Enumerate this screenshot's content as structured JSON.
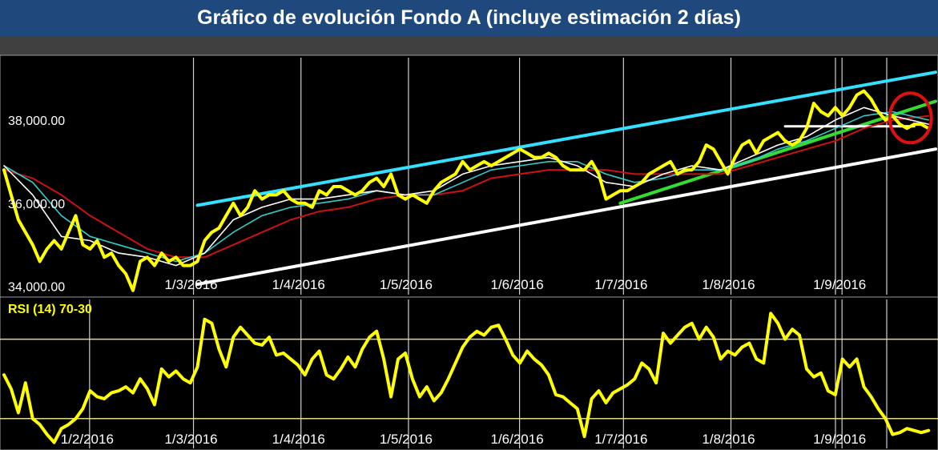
{
  "title": "Gráfico de evolución Fondo A (incluye estimación 2 días)",
  "colors": {
    "price": "#ffff00",
    "ma_short": "#ffffff",
    "ma_mid": "#33cccc",
    "ma_long": "#cc1111",
    "channel_top": "#33e0ff",
    "channel_bottom": "#ffffff",
    "support_green": "#33dd33",
    "highlight_circle": "#e01010",
    "grid": "#d0d0d0",
    "rsi_bands": "#e0d890"
  },
  "chart_data": [
    {
      "type": "line",
      "name": "price-panel",
      "yticks": [
        "38,000.00",
        "36,000.00",
        "34,000.00"
      ],
      "ytick_values": [
        38000,
        36000,
        34000
      ],
      "ylim": [
        33800,
        39500
      ],
      "xlim": [
        0,
        130
      ],
      "xticks": [
        "1/3/2016",
        "1/4/2016",
        "1/5/2016",
        "1/6/2016",
        "1/7/2016",
        "1/8/2016",
        "1/9/2016"
      ],
      "xtick_positions": [
        27,
        42,
        57,
        72.5,
        87,
        102,
        117.5
      ],
      "series": [
        {
          "key": "price",
          "x": [
            0,
            1,
            2,
            3,
            4,
            5,
            6,
            7,
            8,
            9,
            10,
            11,
            12,
            13,
            14,
            15,
            16,
            17,
            18,
            19,
            20,
            21,
            22,
            23,
            24,
            25,
            26,
            27,
            28,
            29,
            30,
            31,
            32,
            33,
            34,
            35,
            36,
            37,
            38,
            39,
            40,
            41,
            42,
            43,
            44,
            45,
            46,
            47,
            48,
            49,
            50,
            51,
            52,
            53,
            54,
            55,
            56,
            57,
            58,
            59,
            60,
            61,
            62,
            63,
            64,
            65,
            66,
            67,
            68,
            69,
            70,
            71,
            72,
            73,
            74,
            75,
            76,
            77,
            78,
            79,
            80,
            81,
            82,
            83,
            84,
            85,
            86,
            87,
            88,
            89,
            90,
            91,
            92,
            93,
            94,
            95,
            96,
            97,
            98,
            99,
            100,
            101,
            102,
            103,
            104,
            105,
            106,
            107,
            108,
            109,
            110,
            111,
            112,
            113,
            114,
            115,
            116,
            117,
            118,
            119,
            120,
            121,
            122,
            123,
            124,
            125,
            126,
            127,
            128,
            129
          ],
          "values": [
            36800,
            36200,
            35600,
            35300,
            35000,
            34600,
            34900,
            35100,
            34900,
            35300,
            35700,
            35000,
            34900,
            35100,
            34700,
            34800,
            34500,
            34300,
            33900,
            34600,
            34700,
            34500,
            34800,
            34600,
            34700,
            34500,
            34500,
            34600,
            35100,
            35300,
            35400,
            35700,
            36000,
            35700,
            35900,
            36300,
            36100,
            36200,
            36200,
            36300,
            36100,
            36000,
            36000,
            35900,
            36300,
            36200,
            36400,
            36400,
            36300,
            36200,
            36300,
            36500,
            36600,
            36400,
            36700,
            36200,
            36100,
            36200,
            36100,
            36000,
            36300,
            36500,
            36600,
            36700,
            37000,
            36800,
            36900,
            37000,
            36900,
            37000,
            37100,
            37200,
            37300,
            37200,
            37100,
            37100,
            37200,
            37100,
            36900,
            36800,
            36800,
            36800,
            37000,
            36700,
            36100,
            36200,
            36300,
            36300,
            36400,
            36500,
            36700,
            36800,
            36900,
            37000,
            36700,
            36800,
            36800,
            37000,
            37400,
            37300,
            37000,
            36700,
            37100,
            37400,
            37500,
            37200,
            37500,
            37600,
            37700,
            37500,
            37400,
            37500,
            37800,
            38400,
            38200,
            38100,
            38300,
            38100,
            38300,
            38600,
            38700,
            38500,
            38200,
            38000,
            38100,
            37900,
            37800,
            37900,
            37900,
            37800
          ]
        },
        {
          "key": "ma_short",
          "x": [
            0,
            4,
            8,
            12,
            16,
            20,
            24,
            28,
            32,
            36,
            40,
            44,
            48,
            52,
            56,
            60,
            64,
            68,
            72,
            76,
            80,
            84,
            88,
            92,
            96,
            100,
            104,
            108,
            112,
            116,
            120,
            124,
            129
          ],
          "values": [
            36900,
            36200,
            35200,
            35100,
            34800,
            34700,
            34500,
            34800,
            35600,
            35900,
            36100,
            36100,
            36200,
            36300,
            36200,
            36300,
            36700,
            36900,
            37000,
            37100,
            36900,
            36500,
            36400,
            36700,
            36900,
            36800,
            37100,
            37400,
            37600,
            38000,
            38300,
            38100,
            37900
          ]
        },
        {
          "key": "ma_mid",
          "x": [
            0,
            4,
            8,
            12,
            16,
            20,
            24,
            28,
            32,
            36,
            40,
            44,
            48,
            52,
            56,
            60,
            64,
            68,
            72,
            76,
            80,
            84,
            88,
            92,
            96,
            100,
            104,
            108,
            112,
            116,
            120,
            124,
            129
          ],
          "values": [
            36900,
            36500,
            35700,
            35200,
            35000,
            34800,
            34600,
            34800,
            35300,
            35700,
            35900,
            36000,
            36100,
            36300,
            36200,
            36200,
            36500,
            36800,
            36900,
            37000,
            37000,
            36700,
            36500,
            36600,
            36800,
            36800,
            37000,
            37300,
            37500,
            37800,
            38100,
            38200,
            38000
          ]
        },
        {
          "key": "ma_long",
          "x": [
            0,
            4,
            8,
            12,
            16,
            20,
            24,
            28,
            32,
            36,
            40,
            44,
            48,
            52,
            56,
            60,
            64,
            68,
            72,
            76,
            80,
            84,
            88,
            92,
            96,
            100,
            104,
            108,
            112,
            116,
            120,
            124,
            129
          ],
          "values": [
            36800,
            36600,
            36200,
            35700,
            35300,
            34900,
            34700,
            34700,
            35000,
            35300,
            35600,
            35800,
            35900,
            36100,
            36200,
            36200,
            36300,
            36600,
            36700,
            36800,
            36800,
            36800,
            36700,
            36700,
            36700,
            36700,
            36900,
            37100,
            37300,
            37500,
            37800,
            38000,
            38100
          ]
        },
        {
          "key": "channel_top",
          "x": [
            27,
            130
          ],
          "values": [
            35950,
            39150
          ]
        },
        {
          "key": "channel_bottom",
          "x": [
            27,
            130
          ],
          "values": [
            34050,
            37300
          ]
        },
        {
          "key": "support_green",
          "x": [
            86,
            130
          ],
          "values": [
            36000,
            38450
          ]
        },
        {
          "key": "resistance_white",
          "x": [
            109,
            127
          ],
          "values": [
            37850,
            37850
          ]
        }
      ],
      "annotations": [
        {
          "type": "circle",
          "x": 126.5,
          "y": 38050
        }
      ]
    },
    {
      "type": "line",
      "name": "rsi-panel",
      "label": "RSI (14) 70-30",
      "ylim": [
        15,
        90
      ],
      "bands": [
        70,
        30
      ],
      "xlim": [
        0,
        130
      ],
      "xticks": [
        "1/2/2016",
        "1/3/2016",
        "1/4/2016",
        "1/5/2016",
        "1/6/2016",
        "1/7/2016",
        "1/8/2016",
        "1/9/2016"
      ],
      "xtick_positions": [
        12.5,
        27,
        42,
        57,
        72.5,
        87,
        102,
        117.5
      ],
      "series": [
        {
          "key": "rsi",
          "x": [
            0,
            1,
            2,
            3,
            4,
            5,
            6,
            7,
            8,
            9,
            10,
            11,
            12,
            13,
            14,
            15,
            16,
            17,
            18,
            19,
            20,
            21,
            22,
            23,
            24,
            25,
            26,
            27,
            28,
            29,
            30,
            31,
            32,
            33,
            34,
            35,
            36,
            37,
            38,
            39,
            40,
            41,
            42,
            43,
            44,
            45,
            46,
            47,
            48,
            49,
            50,
            51,
            52,
            53,
            54,
            55,
            56,
            57,
            58,
            59,
            60,
            61,
            62,
            63,
            64,
            65,
            66,
            67,
            68,
            69,
            70,
            71,
            72,
            73,
            74,
            75,
            76,
            77,
            78,
            79,
            80,
            81,
            82,
            83,
            84,
            85,
            86,
            87,
            88,
            89,
            90,
            91,
            92,
            93,
            94,
            95,
            96,
            97,
            98,
            99,
            100,
            101,
            102,
            103,
            104,
            105,
            106,
            107,
            108,
            109,
            110,
            111,
            112,
            113,
            114,
            115,
            116,
            117,
            118,
            119,
            120,
            121,
            122,
            123,
            124,
            125,
            126,
            127,
            128,
            129
          ],
          "values": [
            52,
            45,
            33,
            48,
            30,
            27,
            22,
            18,
            25,
            27,
            30,
            35,
            44,
            41,
            40,
            43,
            44,
            46,
            43,
            50,
            45,
            37,
            55,
            51,
            54,
            50,
            48,
            56,
            80,
            78,
            65,
            56,
            71,
            76,
            72,
            68,
            67,
            71,
            62,
            63,
            60,
            57,
            52,
            60,
            64,
            52,
            50,
            55,
            61,
            56,
            65,
            71,
            74,
            60,
            41,
            60,
            63,
            50,
            41,
            46,
            39,
            43,
            50,
            58,
            66,
            71,
            74,
            72,
            76,
            77,
            70,
            62,
            58,
            64,
            60,
            57,
            52,
            42,
            41,
            38,
            35,
            21,
            40,
            44,
            38,
            43,
            45,
            47,
            50,
            58,
            55,
            48,
            73,
            68,
            72,
            76,
            78,
            70,
            76,
            71,
            60,
            64,
            62,
            66,
            68,
            60,
            58,
            83,
            78,
            70,
            75,
            72,
            55,
            51,
            53,
            44,
            42,
            60,
            56,
            60,
            46,
            41,
            35,
            30,
            22,
            23,
            25,
            24,
            23,
            24
          ]
        }
      ]
    }
  ]
}
